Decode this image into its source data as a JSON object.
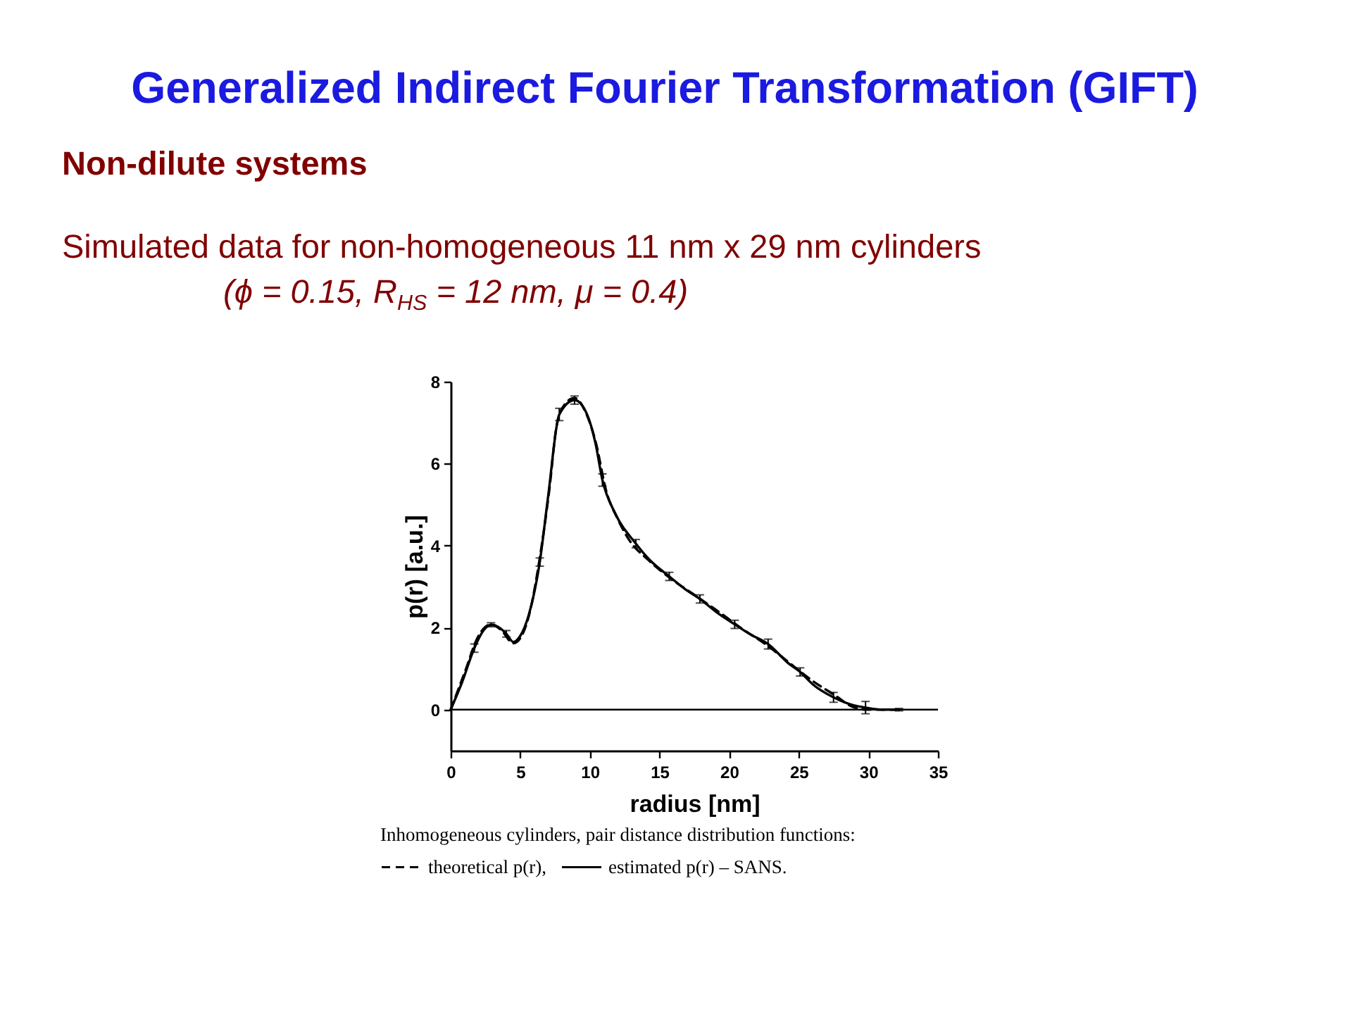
{
  "chart_data": {
    "type": "line",
    "title": "Generalized Indirect Fourier Transformation (GIFT)",
    "subtitle": "Non-dilute systems",
    "annotations": [
      "Simulated data for non-homogeneous 11 nm x 29 nm cylinders",
      "(ϕ = 0.15, R$_{HS}$ = 12 nm, μ = 0.4)"
    ],
    "xlabel": "radius [nm]",
    "ylabel": "p(r) [a.u.]",
    "legend_title": "Inhomogeneous cylinders, pair distance distribution functions:",
    "legend": "bottom",
    "xlim": [
      0,
      35
    ],
    "xticks": [
      0,
      5,
      10,
      15,
      20,
      25,
      30,
      35
    ],
    "ylim": [
      -1,
      8
    ],
    "yticks": [
      0,
      2,
      4,
      6,
      8
    ],
    "ref_lines": [
      {
        "axis": "y",
        "value": 0,
        "color": "#000000"
      }
    ],
    "series": [
      {
        "name": "theoretical p(r),",
        "color": "#000000",
        "line_style": "dashed",
        "x": [
          0,
          1,
          2,
          2.9,
          3.6,
          4.5,
          5.1,
          5.7,
          6.4,
          7.1,
          7.6,
          8.2,
          8.9,
          9.7,
          10.4,
          11.2,
          12.0,
          12.8,
          14.2,
          15.8,
          17.5,
          19.2,
          20.9,
          22.6,
          24.3,
          26.0,
          27.6,
          28.8,
          29.7,
          31.0,
          32.0
        ],
        "values": [
          0,
          0.9,
          1.8,
          2.08,
          1.95,
          1.62,
          1.8,
          2.4,
          3.7,
          5.4,
          6.9,
          7.45,
          7.6,
          7.25,
          6.55,
          5.3,
          4.65,
          4.15,
          3.65,
          3.2,
          2.8,
          2.4,
          1.98,
          1.6,
          1.15,
          0.7,
          0.35,
          0.08,
          0.0,
          0.0,
          0.0
        ]
      },
      {
        "name": "estimated p(r) – SANS.",
        "color": "#000000",
        "line_style": "solid",
        "x": [
          0,
          0.8,
          1.7,
          2.4,
          2.9,
          3.5,
          4.0,
          4.5,
          5.0,
          5.6,
          6.4,
          7.0,
          7.8,
          8.9,
          9.8,
          10.4,
          10.9,
          11.8,
          13.3,
          14.3,
          15.7,
          16.8,
          17.9,
          19.2,
          20.4,
          21.5,
          22.8,
          24.3,
          25.1,
          26.0,
          27.5,
          29.0,
          29.8,
          31.0,
          32.2
        ],
        "values": [
          0,
          0.65,
          1.5,
          1.95,
          2.07,
          2.0,
          1.85,
          1.65,
          1.8,
          2.3,
          3.6,
          5.2,
          7.2,
          7.55,
          7.2,
          6.5,
          5.6,
          4.8,
          4.05,
          3.65,
          3.25,
          2.95,
          2.7,
          2.35,
          2.08,
          1.84,
          1.6,
          1.12,
          0.92,
          0.62,
          0.3,
          0.1,
          0.05,
          0.0,
          0.0
        ],
        "errors": [
          null,
          null,
          0.1,
          null,
          0.05,
          null,
          0.08,
          null,
          null,
          null,
          0.1,
          null,
          0.15,
          0.1,
          null,
          null,
          0.15,
          null,
          0.1,
          null,
          0.1,
          null,
          0.1,
          null,
          0.1,
          null,
          0.12,
          null,
          0.1,
          null,
          0.12,
          null,
          0.15,
          null,
          0.03
        ]
      }
    ]
  }
}
